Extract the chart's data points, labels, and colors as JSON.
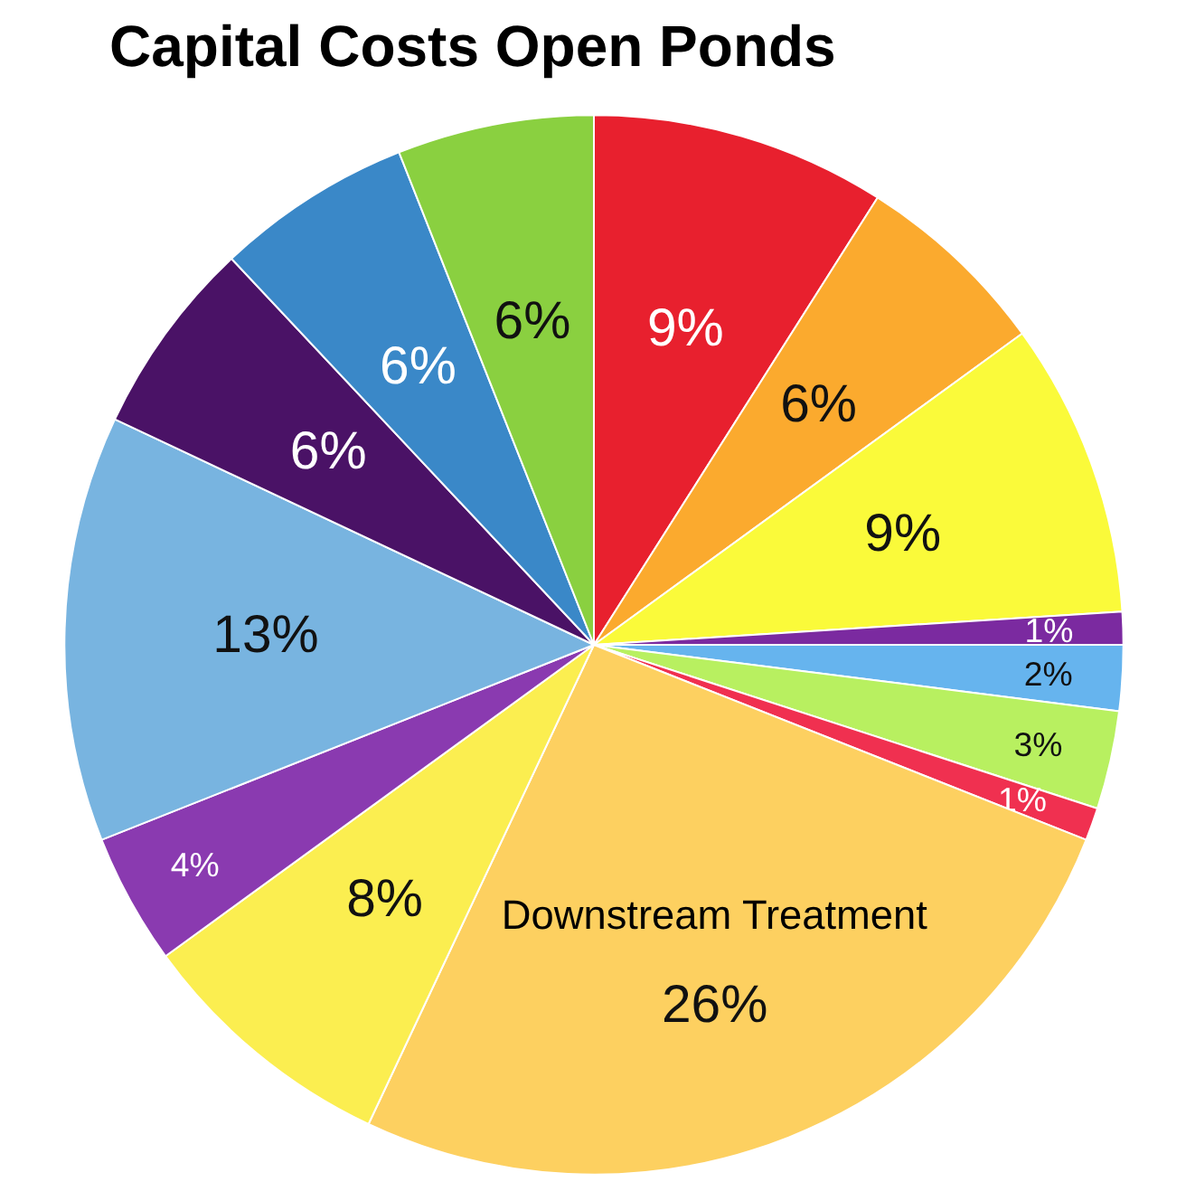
{
  "chart_data": {
    "type": "pie",
    "title": "Capital Costs Open Ponds",
    "categories": [
      null,
      null,
      null,
      null,
      null,
      null,
      null,
      "Downstream Treatment",
      null,
      null,
      null,
      null,
      null,
      null
    ],
    "values": [
      9,
      6,
      9,
      1,
      2,
      3,
      1,
      26,
      8,
      4,
      13,
      6,
      6,
      6
    ],
    "colors": [
      "#e8202e",
      "#fbaa2e",
      "#fafa3a",
      "#7b2aa0",
      "#66b4ee",
      "#b8f060",
      "#f03050",
      "#fdd060",
      "#fbee50",
      "#8a3ab0",
      "#78b4e0",
      "#4a1266",
      "#3a88c8",
      "#8ad040"
    ],
    "value_labels": [
      "9%",
      "6%",
      "9%",
      "1%",
      "2%",
      "3%",
      "1%",
      "26%",
      "8%",
      "4%",
      "13%",
      "6%",
      "6%",
      "6%"
    ]
  }
}
